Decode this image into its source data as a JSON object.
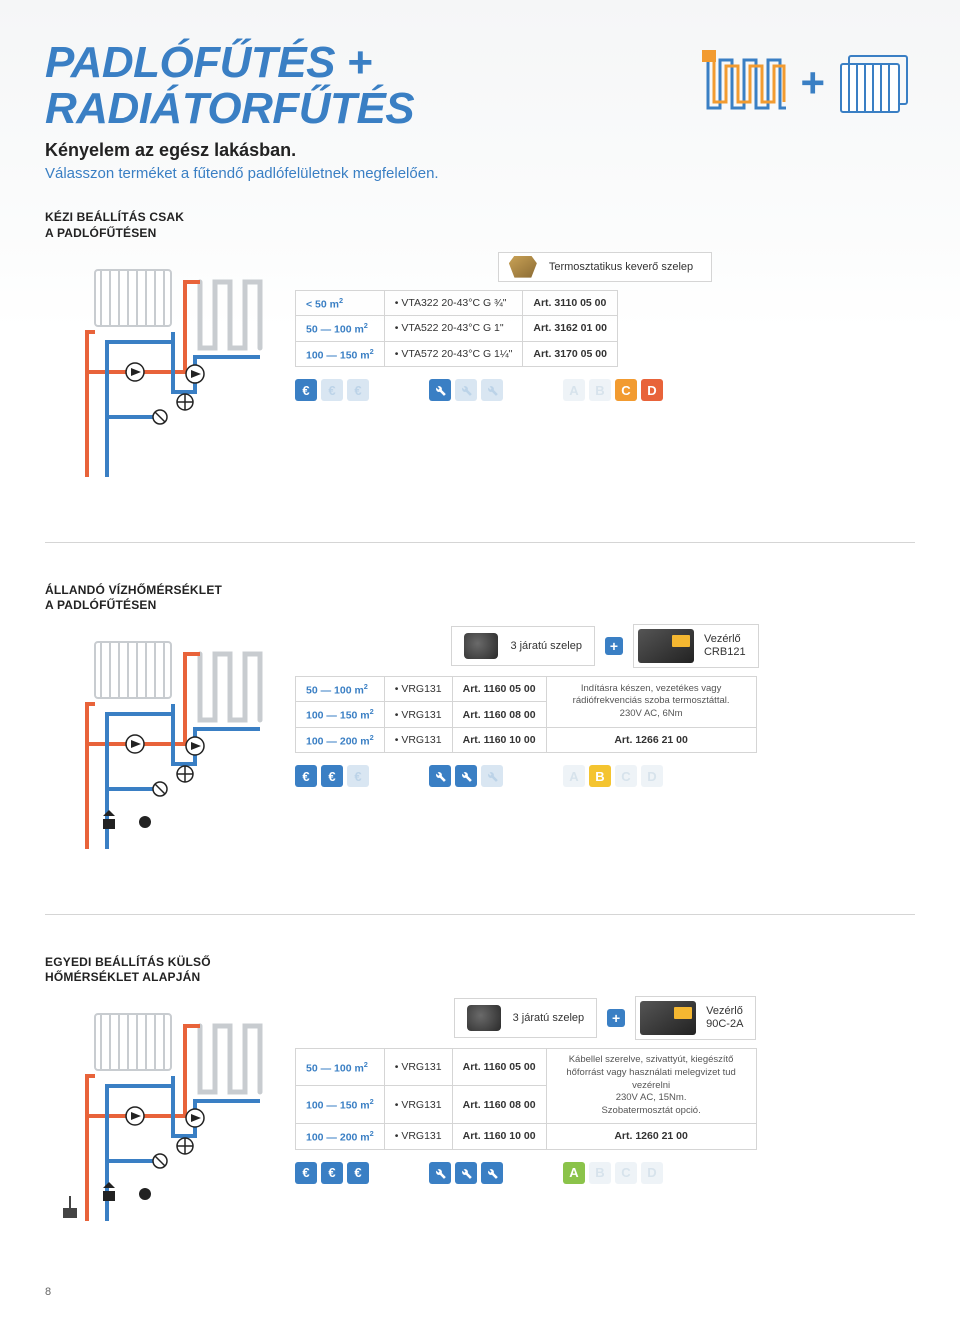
{
  "header": {
    "title_line1": "PADLÓFŰTÉS +",
    "title_line2": "RADIÁTORFŰTÉS",
    "subtitle": "Kényelem az egész lakásban.",
    "intro": "Válasszon terméket a fűtendő padlófelületnek megfelelően.",
    "plus": "+"
  },
  "colors": {
    "brand": "#3a7fc4",
    "orange": "#f29b30",
    "red": "#e8633a",
    "hot": "#e8633a",
    "cold": "#3a7fc4"
  },
  "sections": [
    {
      "title": "KÉZI BEÁLLÍTÁS CSAK\nA PADLÓFŰTÉSEN",
      "valve_label": "Termosztatikus keverő szelep",
      "has_controller": false,
      "rows": [
        {
          "area": "< 50 m²",
          "prod": "• VTA322  20-43°C  G ¾\"",
          "art": "Art. 3110 05 00"
        },
        {
          "area": "50 — 100 m²",
          "prod": "• VTA522  20-43°C  G 1\"",
          "art": "Art. 3162 01 00"
        },
        {
          "area": "100 — 150 m²",
          "prod": "• VTA572  20-43°C  G 1¼\"",
          "art": "Art. 3170 05 00"
        }
      ],
      "icons": {
        "euros": [
          true,
          false,
          false
        ],
        "wrenches": [
          true,
          false,
          false
        ],
        "letters": {
          "A": false,
          "B": false,
          "C": true,
          "D": true
        }
      }
    },
    {
      "title": "ÁLLANDÓ VÍZHŐMÉRSÉKLET\nA PADLÓFŰTÉSEN",
      "valve_label": "3 járatú szelep",
      "has_controller": true,
      "controller_name": "Vezérlő\nCRB121",
      "controller_desc": "Indításra készen, vezetékes vagy rádiófrekvenciás szoba termosztáttal.\n230V AC, 6Nm",
      "controller_art": "Art. 1266 21 00",
      "rows": [
        {
          "area": "50 — 100 m²",
          "prod": "• VRG131",
          "art": "Art. 1160 05 00"
        },
        {
          "area": "100 — 150 m²",
          "prod": "• VRG131",
          "art": "Art. 1160 08 00"
        },
        {
          "area": "100 — 200 m²",
          "prod": "• VRG131",
          "art": "Art. 1160 10 00"
        }
      ],
      "icons": {
        "euros": [
          true,
          true,
          false
        ],
        "wrenches": [
          true,
          true,
          false
        ],
        "letters": {
          "A": false,
          "B": true,
          "C": false,
          "D": false
        }
      }
    },
    {
      "title": "EGYEDI BEÁLLÍTÁS KÜLSŐ\nHŐMÉRSÉKLET ALAPJÁN",
      "valve_label": "3 járatú szelep",
      "has_controller": true,
      "controller_name": "Vezérlő\n90C-2A",
      "controller_desc": "Kábellel szerelve, szivattyút, kiegészítő hőforrást vagy használati melegvizet tud vezérelni\n230V AC, 15Nm.\nSzobatermosztát opció.",
      "controller_art": "Art. 1260 21 00",
      "rows": [
        {
          "area": "50 — 100 m²",
          "prod": "• VRG131",
          "art": "Art. 1160 05 00"
        },
        {
          "area": "100 — 150 m²",
          "prod": "• VRG131",
          "art": "Art. 1160 08 00"
        },
        {
          "area": "100 — 200 m²",
          "prod": "• VRG131",
          "art": "Art. 1160 10 00"
        }
      ],
      "icons": {
        "euros": [
          true,
          true,
          true
        ],
        "wrenches": [
          true,
          true,
          true
        ],
        "letters": {
          "A": true,
          "B": false,
          "C": false,
          "D": false
        }
      }
    }
  ],
  "page_number": "8"
}
